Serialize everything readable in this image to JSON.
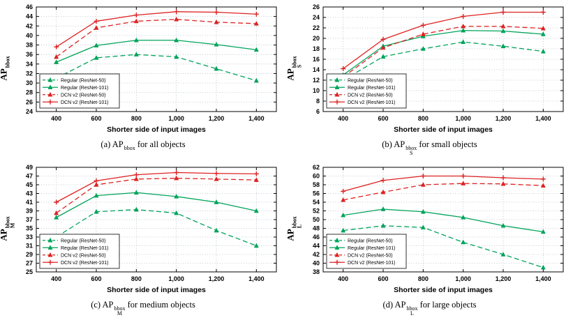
{
  "figure": {
    "background": "#ffffff",
    "shared_xlabel": "Shorter side of input images"
  },
  "colors": {
    "regular_green": "#00a35a",
    "dcn_red": "#dd2222",
    "grid": "#aeb9c4",
    "axis": "#000000"
  },
  "chart_data": [
    {
      "id": "a",
      "type": "line",
      "ylabel": {
        "base": "AP",
        "sup": "bbox",
        "sub": ""
      },
      "caption": {
        "prefix": "(a) ",
        "base": "AP",
        "sup": "bbox",
        "sub": "",
        "suffix": " for all objects"
      },
      "xlabel": "Shorter side of input images",
      "x": [
        400,
        600,
        800,
        1000,
        1200,
        1400
      ],
      "xtick_labels": [
        "400",
        "600",
        "800",
        "1,000",
        "1,200",
        "1,400"
      ],
      "xlim": [
        300,
        1500
      ],
      "ylim": [
        24,
        46
      ],
      "ytick_step": 2,
      "grid": true,
      "legend_position": "bottom-left",
      "series": [
        {
          "name": "Regular (ResNet-50)",
          "color": "#00a35a",
          "linestyle": "dashed",
          "marker": "triangle",
          "values": [
            31,
            35.3,
            36,
            35.5,
            33,
            30.5
          ]
        },
        {
          "name": "Regular (ResNet-101)",
          "color": "#00a35a",
          "linestyle": "solid",
          "marker": "triangle",
          "values": [
            34.4,
            37.9,
            39,
            39,
            38.1,
            37
          ]
        },
        {
          "name": "DCN v2 (ResNet-50)",
          "color": "#dd2222",
          "linestyle": "dashed",
          "marker": "triangle",
          "values": [
            35.5,
            41.6,
            43,
            43.4,
            42.8,
            42.5
          ]
        },
        {
          "name": "DCN v2 (ResNet-101)",
          "color": "#dd2222",
          "linestyle": "solid",
          "marker": "plus",
          "values": [
            37.6,
            43,
            44.3,
            45,
            44.9,
            44.5
          ]
        }
      ]
    },
    {
      "id": "b",
      "type": "line",
      "ylabel": {
        "base": "AP",
        "sup": "bbox",
        "sub": "S"
      },
      "caption": {
        "prefix": "(b) ",
        "base": "AP",
        "sup": "bbox",
        "sub": "S",
        "suffix": " for small objects"
      },
      "xlabel": "Shorter side of input images",
      "x": [
        400,
        600,
        800,
        1000,
        1200,
        1400
      ],
      "xtick_labels": [
        "400",
        "600",
        "800",
        "1,000",
        "1,200",
        "1,400"
      ],
      "xlim": [
        300,
        1500
      ],
      "ylim": [
        6,
        26
      ],
      "ytick_step": 2,
      "grid": true,
      "legend_position": "bottom-left",
      "series": [
        {
          "name": "Regular (ResNet-50)",
          "color": "#00a35a",
          "linestyle": "dashed",
          "marker": "triangle",
          "values": [
            12,
            16.5,
            18,
            19.3,
            18.5,
            17.5
          ]
        },
        {
          "name": "Regular (ResNet-101)",
          "color": "#00a35a",
          "linestyle": "solid",
          "marker": "triangle",
          "values": [
            13,
            18.5,
            20.4,
            21.5,
            21.4,
            20.8
          ]
        },
        {
          "name": "DCN v2 (ResNet-50)",
          "color": "#dd2222",
          "linestyle": "dashed",
          "marker": "triangle",
          "values": [
            12.6,
            18.2,
            20.8,
            22.3,
            22.3,
            21.9
          ]
        },
        {
          "name": "DCN v2 (ResNet-101)",
          "color": "#dd2222",
          "linestyle": "solid",
          "marker": "plus",
          "values": [
            14.2,
            19.8,
            22.5,
            24.2,
            25,
            25
          ]
        }
      ]
    },
    {
      "id": "c",
      "type": "line",
      "ylabel": {
        "base": "AP",
        "sup": "bbox",
        "sub": "M"
      },
      "caption": {
        "prefix": "(c) ",
        "base": "AP",
        "sup": "bbox",
        "sub": "M",
        "suffix": " for medium objects"
      },
      "xlabel": "Shorter side of input images",
      "x": [
        400,
        600,
        800,
        1000,
        1200,
        1400
      ],
      "xtick_labels": [
        "400",
        "600",
        "800",
        "1,000",
        "1,200",
        "1,400"
      ],
      "xlim": [
        300,
        1500
      ],
      "ylim": [
        25,
        49
      ],
      "ytick_step": 2,
      "grid": true,
      "legend_position": "bottom-left",
      "series": [
        {
          "name": "Regular (ResNet-50)",
          "color": "#00a35a",
          "linestyle": "dashed",
          "marker": "triangle",
          "values": [
            33,
            38.8,
            39.3,
            38.5,
            34.5,
            31
          ]
        },
        {
          "name": "Regular (ResNet-101)",
          "color": "#00a35a",
          "linestyle": "solid",
          "marker": "triangle",
          "values": [
            37.5,
            42.5,
            43.2,
            42.3,
            41,
            39
          ]
        },
        {
          "name": "DCN v2 (ResNet-50)",
          "color": "#dd2222",
          "linestyle": "dashed",
          "marker": "triangle",
          "values": [
            38.5,
            45,
            46.3,
            46.5,
            46.3,
            46.1
          ]
        },
        {
          "name": "DCN v2 (ResNet-101)",
          "color": "#dd2222",
          "linestyle": "solid",
          "marker": "plus",
          "values": [
            41,
            45.9,
            47.3,
            47.8,
            47.6,
            47.5
          ]
        }
      ]
    },
    {
      "id": "d",
      "type": "line",
      "ylabel": {
        "base": "AP",
        "sup": "bbox",
        "sub": "L"
      },
      "caption": {
        "prefix": "(d) ",
        "base": "AP",
        "sup": "bbox",
        "sub": "L",
        "suffix": " for large objects"
      },
      "xlabel": "Shorter side of input images",
      "x": [
        400,
        600,
        800,
        1000,
        1200,
        1400
      ],
      "xtick_labels": [
        "400",
        "600",
        "800",
        "1,000",
        "1,200",
        "1,400"
      ],
      "xlim": [
        300,
        1500
      ],
      "ylim": [
        38,
        62
      ],
      "ytick_step": 2,
      "grid": true,
      "legend_position": "bottom-left",
      "series": [
        {
          "name": "Regular (ResNet-50)",
          "color": "#00a35a",
          "linestyle": "dashed",
          "marker": "triangle",
          "values": [
            47.5,
            48.6,
            48.2,
            44.8,
            42,
            39
          ]
        },
        {
          "name": "Regular (ResNet-101)",
          "color": "#00a35a",
          "linestyle": "solid",
          "marker": "triangle",
          "values": [
            51,
            52.4,
            51.8,
            50.5,
            48.6,
            47.2
          ]
        },
        {
          "name": "DCN v2 (ResNet-50)",
          "color": "#dd2222",
          "linestyle": "dashed",
          "marker": "triangle",
          "values": [
            54.5,
            56.3,
            58,
            58.3,
            58.2,
            57.8
          ]
        },
        {
          "name": "DCN v2 (ResNet-101)",
          "color": "#dd2222",
          "linestyle": "solid",
          "marker": "plus",
          "values": [
            56.5,
            59,
            60,
            60,
            59.6,
            59.3
          ]
        }
      ]
    }
  ]
}
